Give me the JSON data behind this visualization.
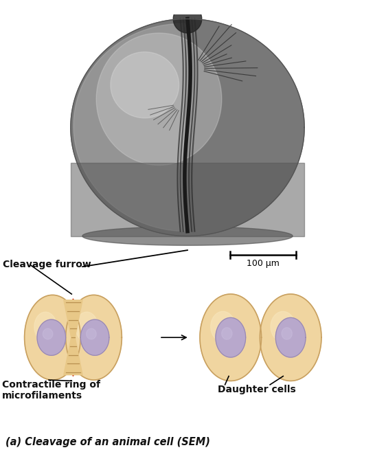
{
  "bg_color": "#ffffff",
  "photo_bg": "#000000",
  "cell_fill": "#f0d5a0",
  "cell_edge": "#c8a060",
  "cell_highlight": "#f8e8c0",
  "nucleus_fill": "#b8a8cc",
  "nucleus_edge": "#9888b0",
  "furrow_fill": "#e8c888",
  "furrow_line": "#b89050",
  "title": "(a) Cleavage of an animal cell (SEM)",
  "label_cleavage": "Cleavage furrow",
  "label_contractile": "Contractile ring of\nmicrofilaments",
  "label_daughter": "Daughter cells",
  "scale_bar_label": "100 μm",
  "arrow_red": "#cc2200",
  "arrow_black": "#111111",
  "text_color": "#111111",
  "label_fontsize": 10,
  "title_fontsize": 10.5
}
